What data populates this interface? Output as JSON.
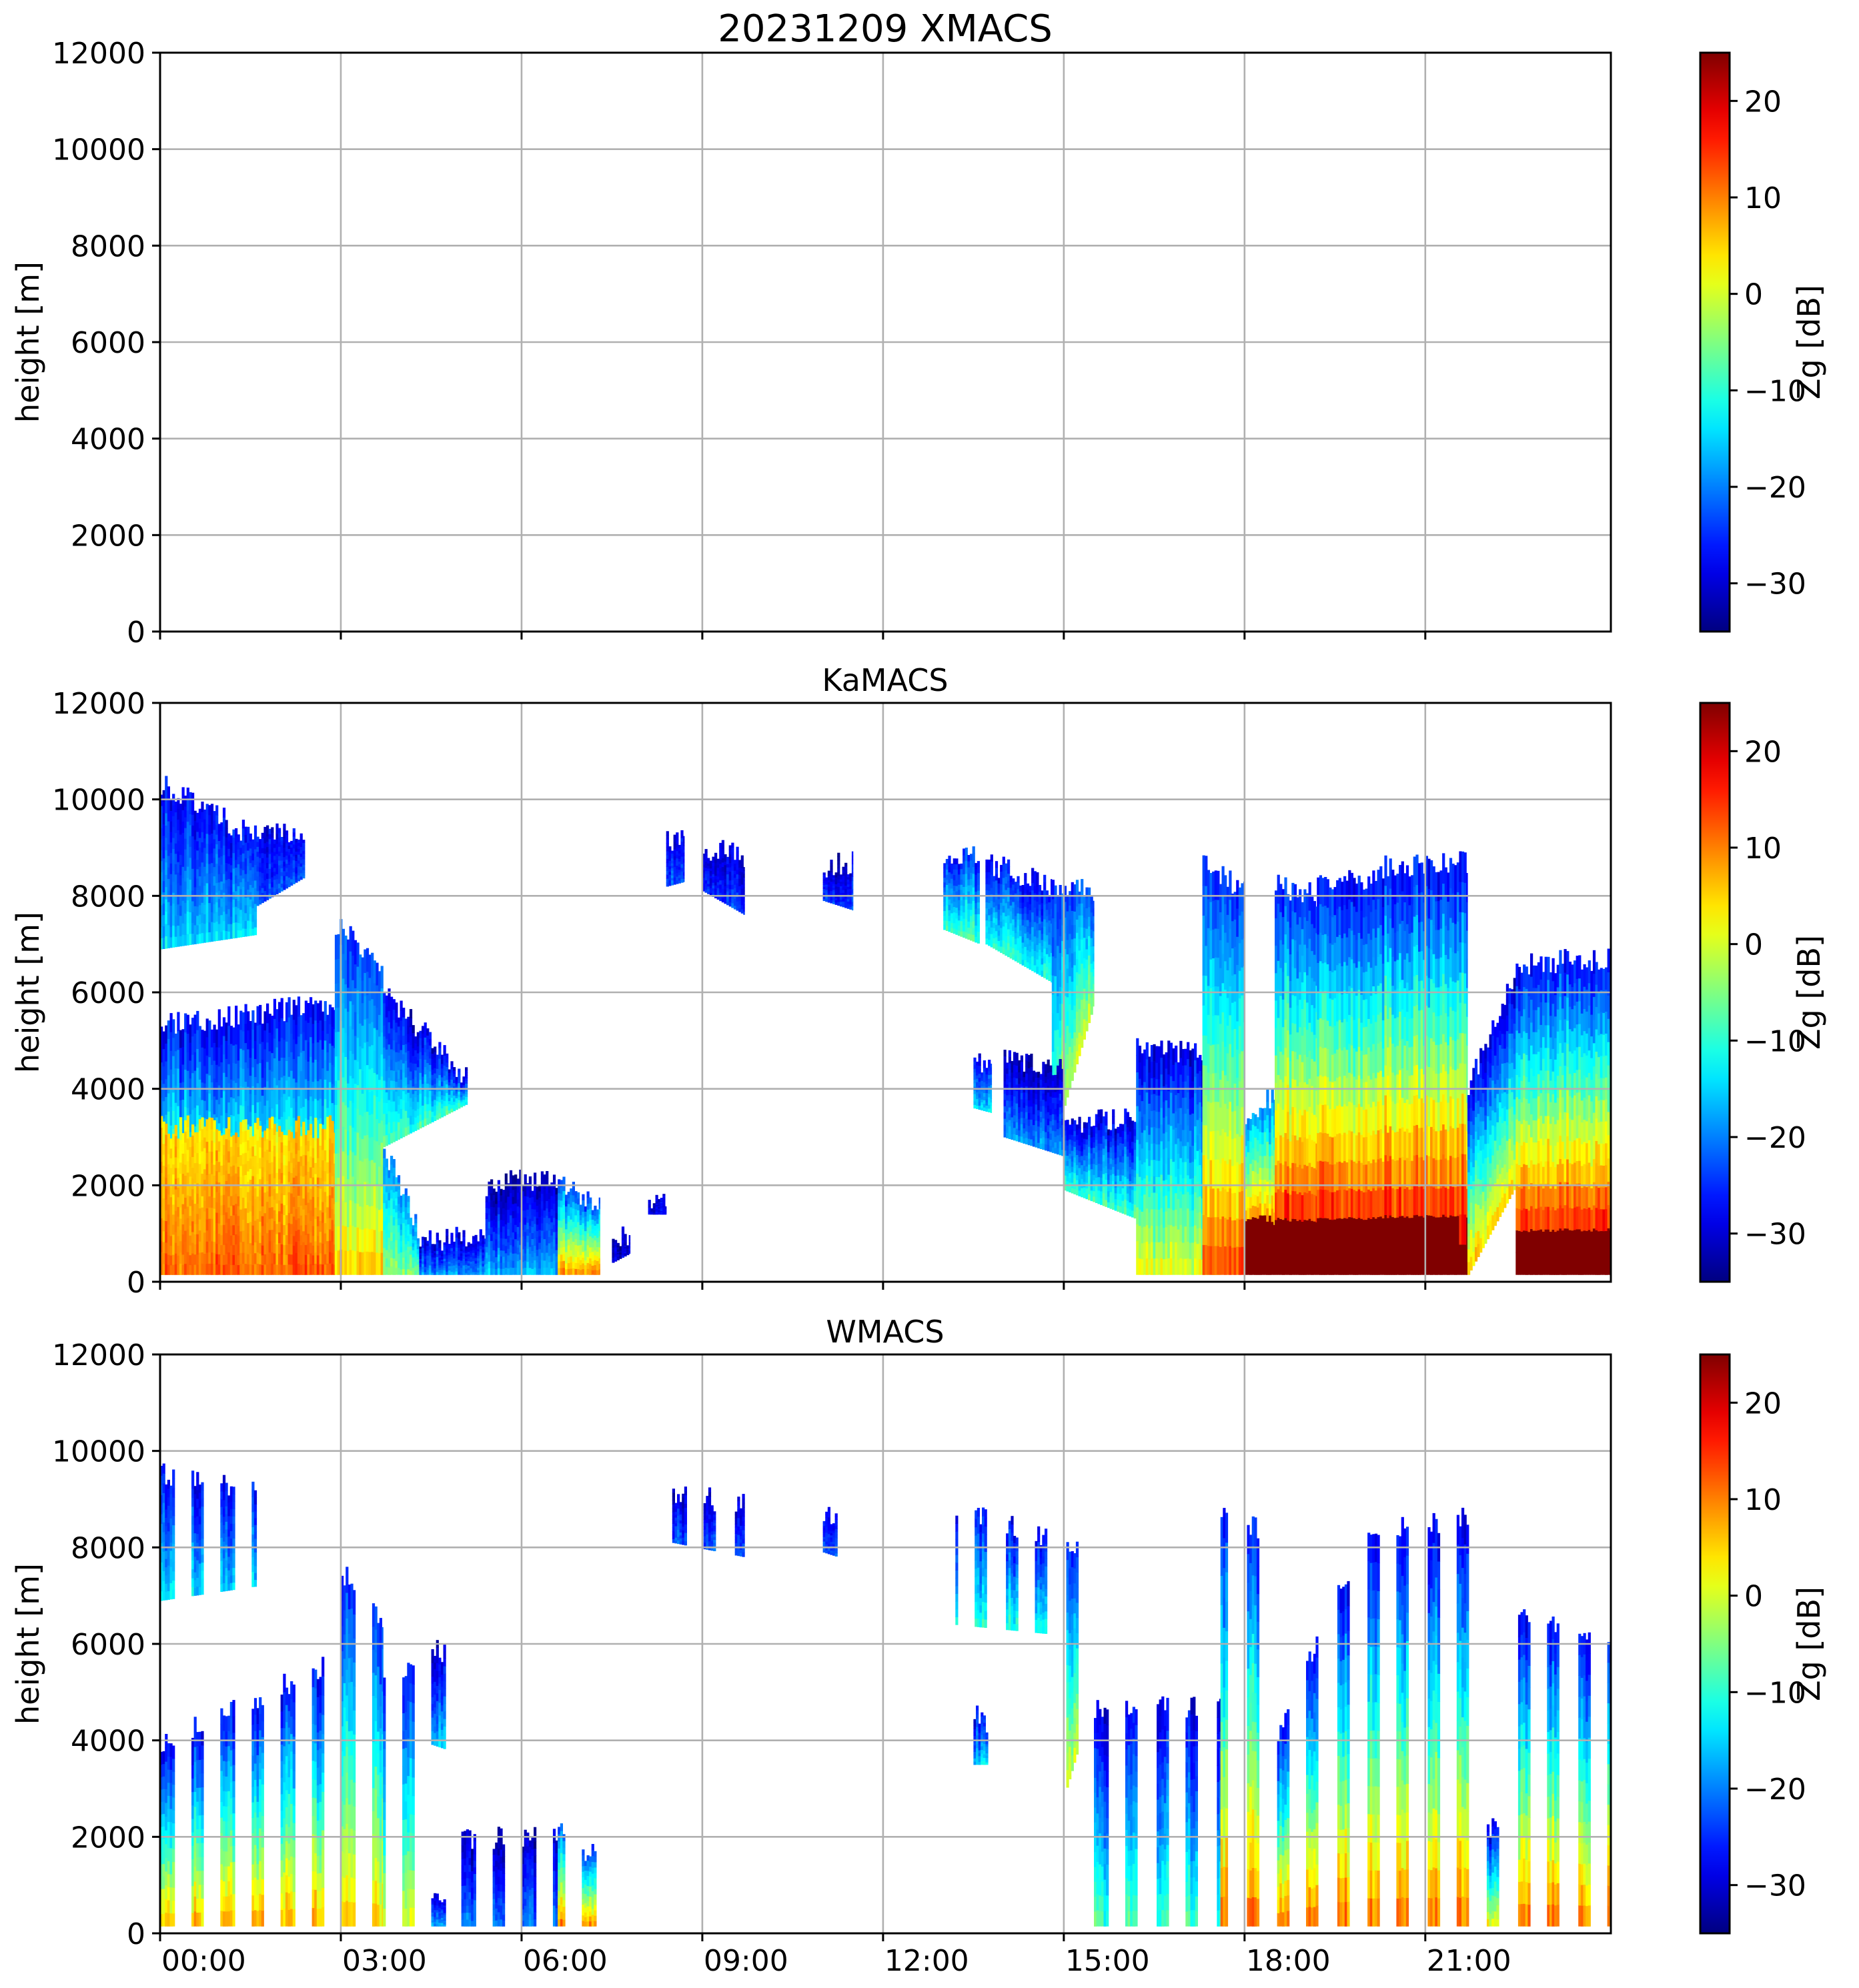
{
  "figure": {
    "title": "20231209 XMACS"
  },
  "colors": {
    "grid": "#b0b0b0",
    "axis": "#000000",
    "background": "#ffffff"
  },
  "chart_data": [
    {
      "type": "heatmap",
      "title": "20231209 XMACS",
      "xlabel": "",
      "ylabel": "height [m]",
      "xlim_hours": [
        0,
        24.08
      ],
      "ylim": [
        0,
        12000
      ],
      "xticks": [
        "00:00",
        "03:00",
        "06:00",
        "09:00",
        "12:00",
        "15:00",
        "18:00",
        "21:00"
      ],
      "yticks": [
        "0",
        "2000",
        "4000",
        "6000",
        "8000",
        "10000",
        "12000"
      ],
      "grid": true,
      "colorbar": {
        "label": "Zg [dB]",
        "vmin": -35,
        "vmax": 25,
        "ticks": [
          "20",
          "10",
          "0",
          "−10",
          "−20",
          "−30"
        ],
        "tick_values": [
          20,
          10,
          0,
          -10,
          -20,
          -30
        ],
        "colormap": "jet"
      },
      "sampling": "continuous",
      "layers": []
    },
    {
      "type": "heatmap",
      "title": "KaMACS",
      "xlabel": "",
      "ylabel": "height [m]",
      "xlim_hours": [
        0,
        24.08
      ],
      "ylim": [
        0,
        12000
      ],
      "xticks": [
        "00:00",
        "03:00",
        "06:00",
        "09:00",
        "12:00",
        "15:00",
        "18:00",
        "21:00"
      ],
      "yticks": [
        "0",
        "2000",
        "4000",
        "6000",
        "8000",
        "10000",
        "12000"
      ],
      "grid": true,
      "colorbar": {
        "label": "Zg [dB]",
        "vmin": -35,
        "vmax": 25,
        "ticks": [
          "20",
          "10",
          "0",
          "−10",
          "−20",
          "−30"
        ],
        "tick_values": [
          20,
          10,
          0,
          -10,
          -20,
          -30
        ],
        "colormap": "jet"
      },
      "sampling": "continuous",
      "note": "layers: t0/t1 hours, base/top m (start,end), z_base/z_top dBZ",
      "layers": [
        {
          "t": [
            0.0,
            1.6
          ],
          "base": [
            6900,
            7200
          ],
          "top": [
            10300,
            9200
          ],
          "z": [
            -14,
            -28
          ]
        },
        {
          "t": [
            1.6,
            2.4
          ],
          "base": [
            7800,
            8400
          ],
          "top": [
            9300,
            9300
          ],
          "z": [
            -22,
            -28
          ]
        },
        {
          "t": [
            0.0,
            2.9
          ],
          "base": [
            150,
            150
          ],
          "top": [
            5300,
            5800
          ],
          "z": [
            8,
            -28
          ]
        },
        {
          "t": [
            0.0,
            2.9
          ],
          "base": [
            150,
            150
          ],
          "top": [
            3200,
            3200
          ],
          "z": [
            12,
            4
          ]
        },
        {
          "t": [
            2.9,
            3.7
          ],
          "base": [
            150,
            150
          ],
          "top": [
            7400,
            6600
          ],
          "z": [
            6,
            -24
          ]
        },
        {
          "t": [
            3.7,
            5.1
          ],
          "base": [
            2800,
            3700
          ],
          "top": [
            6000,
            4200
          ],
          "z": [
            -8,
            -30
          ]
        },
        {
          "t": [
            3.7,
            4.3
          ],
          "base": [
            150,
            150
          ],
          "top": [
            2800,
            1000
          ],
          "z": [
            -4,
            -20
          ]
        },
        {
          "t": [
            4.3,
            5.4
          ],
          "base": [
            150,
            150
          ],
          "top": [
            800,
            1000
          ],
          "z": [
            -18,
            -30
          ]
        },
        {
          "t": [
            5.4,
            6.6
          ],
          "base": [
            150,
            150
          ],
          "top": [
            2000,
            2200
          ],
          "z": [
            -16,
            -32
          ]
        },
        {
          "t": [
            6.6,
            7.3
          ],
          "base": [
            150,
            150
          ],
          "top": [
            2100,
            1500
          ],
          "z": [
            10,
            -24
          ]
        },
        {
          "t": [
            7.5,
            7.8
          ],
          "base": [
            400,
            600
          ],
          "top": [
            900,
            1000
          ],
          "z": [
            -30,
            -32
          ]
        },
        {
          "t": [
            8.1,
            8.4
          ],
          "base": [
            1400,
            1400
          ],
          "top": [
            1700,
            1700
          ],
          "z": [
            -28,
            -30
          ]
        },
        {
          "t": [
            8.4,
            8.7
          ],
          "base": [
            8200,
            8300
          ],
          "top": [
            9200,
            9100
          ],
          "z": [
            -22,
            -28
          ]
        },
        {
          "t": [
            9.0,
            9.7
          ],
          "base": [
            8100,
            7600
          ],
          "top": [
            9000,
            8800
          ],
          "z": [
            -24,
            -30
          ]
        },
        {
          "t": [
            11.0,
            11.5
          ],
          "base": [
            7900,
            7700
          ],
          "top": [
            8600,
            8700
          ],
          "z": [
            -24,
            -30
          ]
        },
        {
          "t": [
            13.0,
            13.6
          ],
          "base": [
            7300,
            7000
          ],
          "top": [
            8600,
            8900
          ],
          "z": [
            -8,
            -26
          ]
        },
        {
          "t": [
            13.7,
            14.8
          ],
          "base": [
            7000,
            6200
          ],
          "top": [
            8700,
            8200
          ],
          "z": [
            -10,
            -28
          ]
        },
        {
          "t": [
            14.8,
            15.5
          ],
          "base": [
            2800,
            5800
          ],
          "top": [
            8100,
            8100
          ],
          "z": [
            0,
            -24
          ]
        },
        {
          "t": [
            13.5,
            13.8
          ],
          "base": [
            3600,
            3500
          ],
          "top": [
            4700,
            4300
          ],
          "z": [
            -14,
            -28
          ]
        },
        {
          "t": [
            14.0,
            15.0
          ],
          "base": [
            3000,
            2600
          ],
          "top": [
            4600,
            4400
          ],
          "z": [
            -18,
            -32
          ]
        },
        {
          "t": [
            15.0,
            16.2
          ],
          "base": [
            1900,
            1300
          ],
          "top": [
            3200,
            3500
          ],
          "z": [
            -8,
            -30
          ]
        },
        {
          "t": [
            16.2,
            17.6
          ],
          "base": [
            150,
            150
          ],
          "top": [
            4800,
            4700
          ],
          "z": [
            2,
            -30
          ]
        },
        {
          "t": [
            17.3,
            18.0
          ],
          "base": [
            150,
            150
          ],
          "top": [
            8700,
            8100
          ],
          "z": [
            14,
            -26
          ]
        },
        {
          "t": [
            18.0,
            18.5
          ],
          "base": [
            150,
            150
          ],
          "top": [
            3500,
            3900
          ],
          "z": [
            25,
            -20
          ]
        },
        {
          "t": [
            18.5,
            19.2
          ],
          "base": [
            150,
            150
          ],
          "top": [
            8200,
            8000
          ],
          "z": [
            25,
            -26
          ]
        },
        {
          "t": [
            19.2,
            20.2
          ],
          "base": [
            150,
            150
          ],
          "top": [
            8200,
            8400
          ],
          "z": [
            25,
            -28
          ]
        },
        {
          "t": [
            20.2,
            21.7
          ],
          "base": [
            150,
            150
          ],
          "top": [
            8600,
            8700
          ],
          "z": [
            25,
            -28
          ]
        },
        {
          "t": [
            21.7,
            22.5
          ],
          "base": [
            150,
            2000
          ],
          "top": [
            4000,
            6500
          ],
          "z": [
            6,
            -30
          ]
        },
        {
          "t": [
            22.5,
            24.08
          ],
          "base": [
            150,
            150
          ],
          "top": [
            6600,
            6700
          ],
          "z": [
            25,
            -28
          ]
        }
      ]
    },
    {
      "type": "heatmap",
      "title": "WMACS",
      "xlabel": "",
      "ylabel": "height [m]",
      "xlim_hours": [
        0,
        24.08
      ],
      "ylim": [
        0,
        12000
      ],
      "xticks": [
        "00:00",
        "03:00",
        "06:00",
        "09:00",
        "12:00",
        "15:00",
        "18:00",
        "21:00"
      ],
      "yticks": [
        "0",
        "2000",
        "4000",
        "6000",
        "8000",
        "10000",
        "12000"
      ],
      "grid": true,
      "colorbar": {
        "label": "Zg [dB]",
        "vmin": -35,
        "vmax": 25,
        "ticks": [
          "20",
          "10",
          "0",
          "−10",
          "−20",
          "−30"
        ],
        "tick_values": [
          20,
          10,
          0,
          -10,
          -20,
          -30
        ],
        "colormap": "jet"
      },
      "sampling": "stripes",
      "stripe_period_hours": 0.5,
      "stripe_width_hours": 0.21,
      "layers": [
        {
          "t": [
            0.0,
            1.6
          ],
          "base": [
            6900,
            7200
          ],
          "top": [
            9500,
            9200
          ],
          "z": [
            -14,
            -28
          ]
        },
        {
          "t": [
            0.0,
            3.0
          ],
          "base": [
            150,
            150
          ],
          "top": [
            4000,
            5700
          ],
          "z": [
            8,
            -28
          ]
        },
        {
          "t": [
            3.0,
            3.7
          ],
          "base": [
            150,
            150
          ],
          "top": [
            7500,
            6500
          ],
          "z": [
            6,
            -26
          ]
        },
        {
          "t": [
            3.7,
            4.3
          ],
          "base": [
            150,
            150
          ],
          "top": [
            5400,
            5400
          ],
          "z": [
            2,
            -26
          ]
        },
        {
          "t": [
            4.3,
            5.0
          ],
          "base": [
            4000,
            3700
          ],
          "top": [
            6000,
            5600
          ],
          "z": [
            -14,
            -30
          ]
        },
        {
          "t": [
            4.3,
            5.0
          ],
          "base": [
            150,
            150
          ],
          "top": [
            800,
            900
          ],
          "z": [
            -18,
            -30
          ]
        },
        {
          "t": [
            5.0,
            6.6
          ],
          "base": [
            150,
            150
          ],
          "top": [
            1900,
            2100
          ],
          "z": [
            -20,
            -32
          ]
        },
        {
          "t": [
            6.6,
            7.3
          ],
          "base": [
            150,
            150
          ],
          "top": [
            2100,
            1500
          ],
          "z": [
            10,
            -24
          ]
        },
        {
          "t": [
            8.5,
            9.7
          ],
          "base": [
            8100,
            7800
          ],
          "top": [
            9100,
            8900
          ],
          "z": [
            -22,
            -30
          ]
        },
        {
          "t": [
            11.0,
            11.5
          ],
          "base": [
            7900,
            7700
          ],
          "top": [
            8600,
            8700
          ],
          "z": [
            -24,
            -30
          ]
        },
        {
          "t": [
            13.2,
            14.8
          ],
          "base": [
            6400,
            6200
          ],
          "top": [
            8800,
            8200
          ],
          "z": [
            -10,
            -28
          ]
        },
        {
          "t": [
            13.5,
            13.8
          ],
          "base": [
            3500,
            3500
          ],
          "top": [
            4600,
            4300
          ],
          "z": [
            -14,
            -28
          ]
        },
        {
          "t": [
            14.8,
            15.5
          ],
          "base": [
            2000,
            5000
          ],
          "top": [
            8100,
            8100
          ],
          "z": [
            0,
            -26
          ]
        },
        {
          "t": [
            15.5,
            17.6
          ],
          "base": [
            150,
            150
          ],
          "top": [
            4700,
            4700
          ],
          "z": [
            -8,
            -30
          ]
        },
        {
          "t": [
            17.6,
            18.3
          ],
          "base": [
            150,
            150
          ],
          "top": [
            8700,
            8300
          ],
          "z": [
            12,
            -26
          ]
        },
        {
          "t": [
            18.3,
            19.8
          ],
          "base": [
            150,
            150
          ],
          "top": [
            3500,
            7800
          ],
          "z": [
            12,
            -28
          ]
        },
        {
          "t": [
            19.8,
            21.9
          ],
          "base": [
            150,
            150
          ],
          "top": [
            8200,
            8700
          ],
          "z": [
            12,
            -28
          ]
        },
        {
          "t": [
            21.9,
            22.3
          ],
          "base": [
            150,
            150
          ],
          "top": [
            2200,
            2200
          ],
          "z": [
            2,
            -30
          ]
        },
        {
          "t": [
            22.3,
            24.08
          ],
          "base": [
            150,
            150
          ],
          "top": [
            6600,
            6000
          ],
          "z": [
            12,
            -28
          ]
        }
      ]
    }
  ]
}
